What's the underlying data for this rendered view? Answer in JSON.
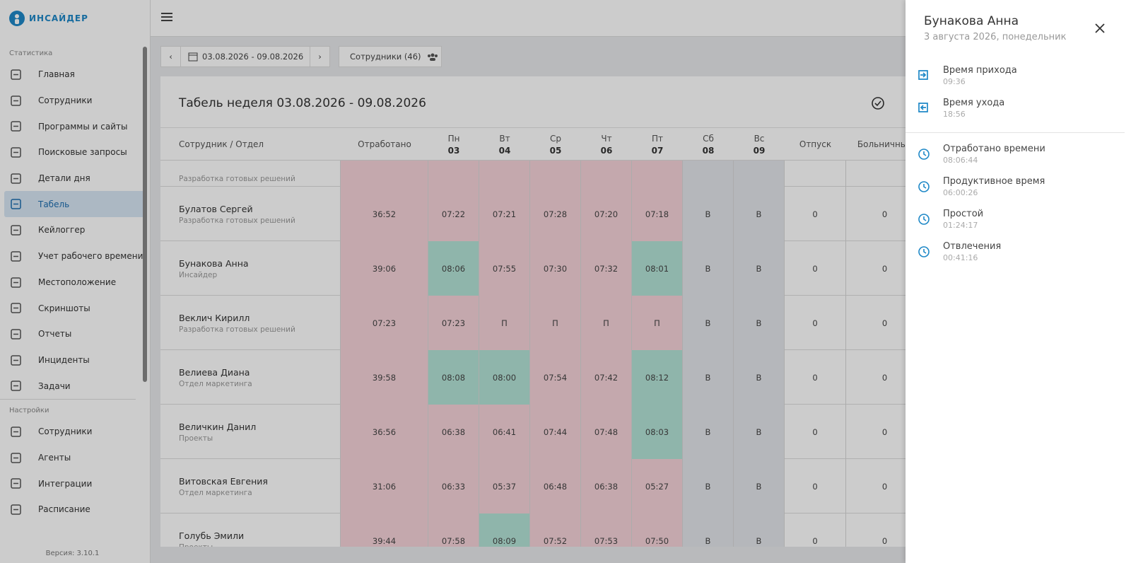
{
  "logo": "ИНСАЙДЕР",
  "sidebar": {
    "sections": [
      {
        "title": "Статистика",
        "items": [
          "Главная",
          "Сотрудники",
          "Программы и сайты",
          "Поисковые запросы",
          "Детали дня",
          "Табель",
          "Кейлоггер",
          "Учет рабочего времени",
          "Местоположение",
          "Скриншоты",
          "Отчеты",
          "Инциденты",
          "Задачи"
        ]
      },
      {
        "title": "Настройки",
        "items": [
          "Сотрудники",
          "Агенты",
          "Интеграции",
          "Расписание"
        ]
      }
    ],
    "active": "Табель",
    "version": "Версия: 3.10.1"
  },
  "toolbar": {
    "date_range": "03.08.2026 - 09.08.2026",
    "employees": "Сотрудники (46)"
  },
  "table": {
    "title": "Табель неделя 03.08.2026 - 09.08.2026",
    "columns": [
      {
        "label": "Сотрудник / Отдел"
      },
      {
        "label": "Отработано"
      },
      {
        "label": "Пн",
        "day": "03"
      },
      {
        "label": "Вт",
        "day": "04"
      },
      {
        "label": "Ср",
        "day": "05"
      },
      {
        "label": "Чт",
        "day": "06"
      },
      {
        "label": "Пт",
        "day": "07"
      },
      {
        "label": "Сб",
        "day": "08"
      },
      {
        "label": "Вс",
        "day": "09"
      },
      {
        "label": "Отпуск"
      },
      {
        "label": "Больничный"
      }
    ],
    "rows": [
      {
        "dept": "Разработка готовых решений"
      },
      {
        "name": "Булатов Сергей",
        "dept": "Разработка готовых решений",
        "cells": [
          "36:52",
          "07:22",
          "07:21",
          "07:28",
          "07:20",
          "07:18",
          "В",
          "В",
          "0",
          "0"
        ],
        "highlight": []
      },
      {
        "name": "Бунакова Анна",
        "dept": "Инсайдер",
        "cells": [
          "39:06",
          "08:06",
          "07:55",
          "07:30",
          "07:32",
          "08:01",
          "В",
          "В",
          "0",
          "0"
        ],
        "highlight": [
          1,
          5
        ]
      },
      {
        "name": "Веклич Кирилл",
        "dept": "Разработка готовых решений",
        "cells": [
          "07:23",
          "07:23",
          "П",
          "П",
          "П",
          "П",
          "В",
          "В",
          "0",
          "0"
        ],
        "highlight": []
      },
      {
        "name": "Велиева Диана",
        "dept": "Отдел маркетинга",
        "cells": [
          "39:58",
          "08:08",
          "08:00",
          "07:54",
          "07:42",
          "08:12",
          "В",
          "В",
          "0",
          "0"
        ],
        "highlight": [
          1,
          2,
          5
        ]
      },
      {
        "name": "Величкин Данил",
        "dept": "Проекты",
        "cells": [
          "36:56",
          "06:38",
          "06:41",
          "07:44",
          "07:48",
          "08:03",
          "В",
          "В",
          "0",
          "0"
        ],
        "highlight": [
          5
        ]
      },
      {
        "name": "Витовская Евгения",
        "dept": "Отдел маркетинга",
        "cells": [
          "31:06",
          "06:33",
          "05:37",
          "06:48",
          "06:38",
          "05:27",
          "В",
          "В",
          "0",
          "0"
        ],
        "highlight": []
      },
      {
        "name": "Голубь Эмили",
        "dept": "Проекты",
        "cells": [
          "39:44",
          "07:58",
          "08:09",
          "07:52",
          "07:53",
          "07:50",
          "В",
          "В",
          "0",
          "0"
        ],
        "highlight": [
          2
        ]
      }
    ]
  },
  "panel": {
    "name": "Бунакова Анна",
    "date": "3 августа 2026, понедельник",
    "groups": [
      [
        {
          "label": "Время прихода",
          "value": "09:36"
        },
        {
          "label": "Время ухода",
          "value": "18:56"
        }
      ],
      [
        {
          "label": "Отработано времени",
          "value": "08:06:44"
        },
        {
          "label": "Продуктивное время",
          "value": "06:00:26"
        },
        {
          "label": "Простой",
          "value": "01:24:17"
        },
        {
          "label": "Отвлечения",
          "value": "00:41:16"
        }
      ]
    ]
  }
}
